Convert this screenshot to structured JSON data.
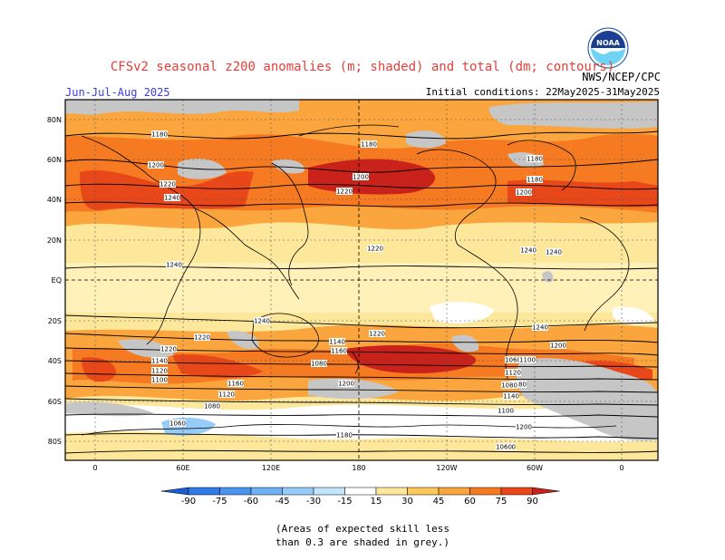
{
  "title": "CFSv2 seasonal z200 anomalies (m; shaded) and total (dm; contours)",
  "period": "Jun-Jul-Aug 2025",
  "initial_conditions": "Initial conditions: 22May2025-31May2025",
  "agency": "NWS/NCEP/CPC",
  "logo_text": "NOAA",
  "note_line1": "(Areas of expected skill less",
  "note_line2": "than 0.3 are shaded in grey.)",
  "map": {
    "lat_labels": [
      "80N",
      "60N",
      "40N",
      "20N",
      "EQ",
      "20S",
      "40S",
      "60S",
      "80S"
    ],
    "lon_labels": [
      "0",
      "60E",
      "120E",
      "180",
      "120W",
      "60W",
      "0"
    ],
    "contour_labels": [
      "1180",
      "1180",
      "1200",
      "1220",
      "1240",
      "1180",
      "1200",
      "1220",
      "1180",
      "1200",
      "1220",
      "1240",
      "1240",
      "1240",
      "1240",
      "1240",
      "1220",
      "1220",
      "1220",
      "1200",
      "1180",
      "1160",
      "1140",
      "1120",
      "1100",
      "1080",
      "1060",
      "1200",
      "1180",
      "1160",
      "1140",
      "1120",
      "1100",
      "1080",
      "1060",
      "1200",
      "1180",
      "1160",
      "1140",
      "1120",
      "1100",
      "1080",
      "1060"
    ]
  },
  "colorbar": {
    "labels": [
      "-90",
      "-75",
      "-60",
      "-45",
      "-30",
      "-15",
      "15",
      "30",
      "45",
      "60",
      "75",
      "90"
    ],
    "colors": [
      "#1a5cd6",
      "#2f7ae6",
      "#4a94ef",
      "#70b0f5",
      "#98ccf8",
      "#c0e6fb",
      "#ffffff",
      "#fde79a",
      "#fdc85a",
      "#fba53e",
      "#f57a22",
      "#e8471a",
      "#c8221a"
    ]
  }
}
